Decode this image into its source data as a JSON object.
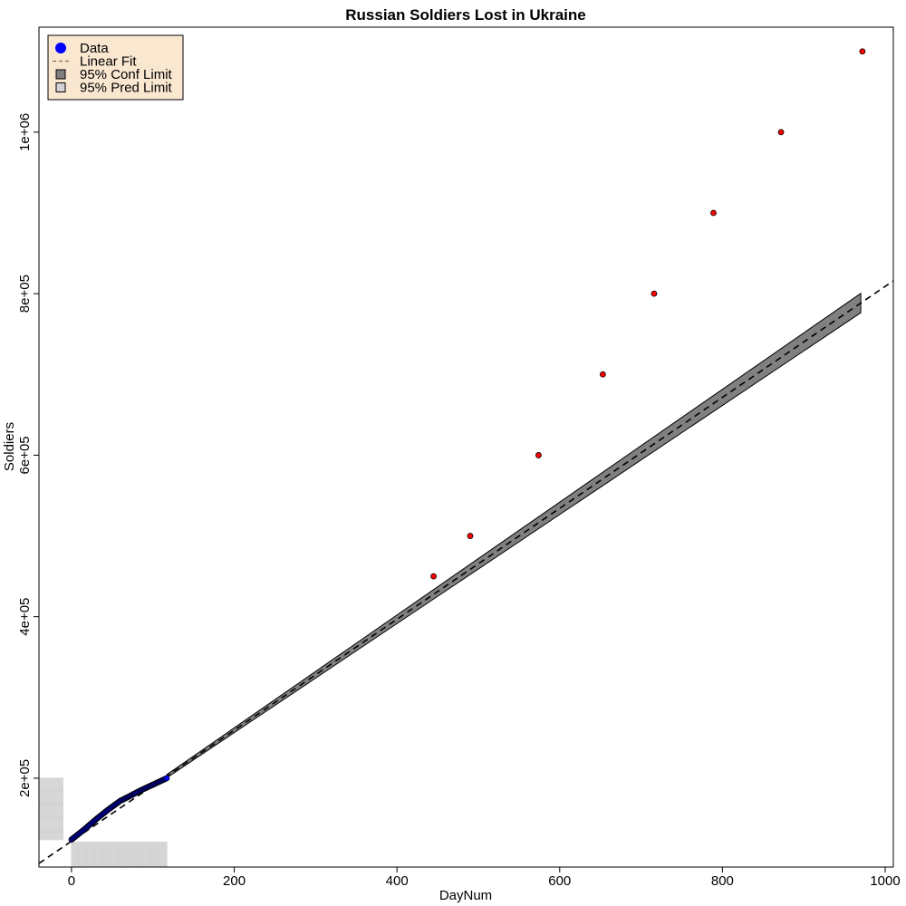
{
  "chart_data": {
    "type": "scatter",
    "title": "Russian Soldiers Lost in Ukraine",
    "xlabel": "DayNum",
    "ylabel": "Soldiers",
    "xlim": [
      -40,
      1010
    ],
    "ylim": [
      90000,
      1130000
    ],
    "x_ticks": [
      0,
      200,
      400,
      600,
      800,
      1000
    ],
    "x_tick_labels": [
      "0",
      "200",
      "400",
      "600",
      "800",
      "1000"
    ],
    "y_ticks": [
      200000,
      400000,
      600000,
      800000,
      1000000
    ],
    "y_tick_labels": [
      "2e+05",
      "4e+05",
      "6e+05",
      "8e+05",
      "1e+06"
    ],
    "grid": false,
    "legend_position": "top-left",
    "legend": [
      {
        "label": "Data",
        "symbol": "dot",
        "color": "#0000ff"
      },
      {
        "label": "Linear Fit",
        "symbol": "dashed-line",
        "color": "#000000"
      },
      {
        "label": "95% Conf Limit",
        "symbol": "box",
        "color": "#808080"
      },
      {
        "label": "95% Pred Limit",
        "symbol": "box",
        "color": "#d3d3d3"
      }
    ],
    "legend_bg": "#fae7d0",
    "observed": {
      "name": "Data",
      "color": "#0000ff",
      "x_range": [
        0,
        117
      ],
      "breakpoints": [
        [
          0,
          124000
        ],
        [
          5,
          128000
        ],
        [
          15,
          136000
        ],
        [
          30,
          149000
        ],
        [
          45,
          161000
        ],
        [
          60,
          172000
        ],
        [
          70,
          177000
        ],
        [
          85,
          185000
        ],
        [
          100,
          192000
        ],
        [
          117,
          200000
        ]
      ]
    },
    "projected": {
      "color": "#ff0000",
      "x": [
        445,
        490,
        574,
        653,
        716,
        789,
        872,
        972
      ],
      "y": [
        450000,
        500000,
        600000,
        700000,
        800000,
        900000,
        1000000,
        1100000
      ]
    },
    "fit": {
      "name": "Linear Fit",
      "intercept": 122000,
      "slope": 687,
      "x_range": [
        -40,
        1010
      ]
    },
    "confidence_band": {
      "name": "95% Conf Limit",
      "color": "#808080",
      "x_range": [
        117,
        970
      ],
      "half_width_start": 2000,
      "half_width_end": 12000
    },
    "rugs": {
      "color": "#d3d3d3",
      "x_range": [
        0,
        117
      ],
      "y_range": [
        124000,
        200000
      ]
    }
  }
}
